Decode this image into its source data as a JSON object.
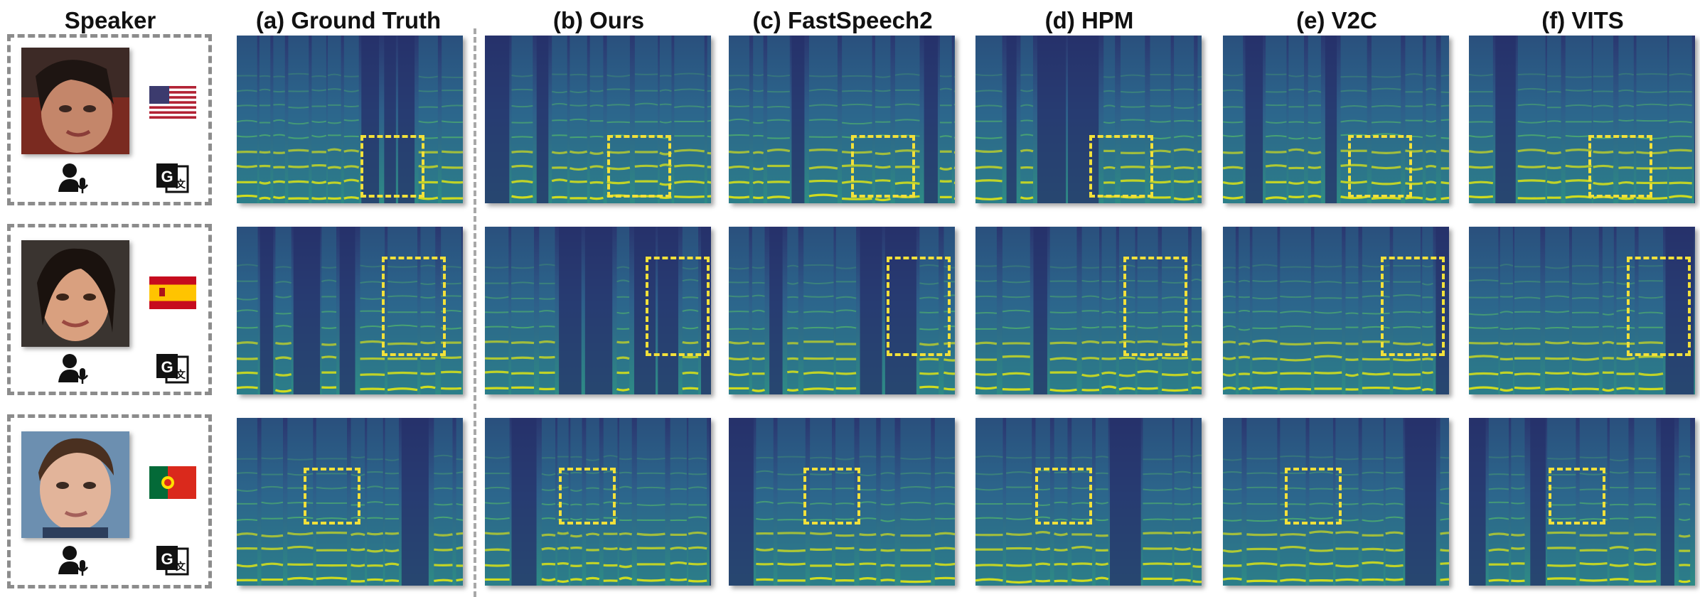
{
  "header": {
    "speaker_label": "Speaker",
    "columns": [
      "(a) Ground Truth",
      "(b) Ours",
      "(c) FastSpeech2",
      "(d) HPM",
      "(e) V2C",
      "(f) VITS"
    ]
  },
  "rows": [
    {
      "flag": "usa",
      "flag_colors": [
        "#b22234",
        "#ffffff",
        "#3c3b6e"
      ],
      "face_tone": "#c4866a",
      "face_bg": "#7a2a20"
    },
    {
      "flag": "spain",
      "flag_colors": [
        "#c60b1e",
        "#ffc400"
      ],
      "face_tone": "#d9a07f",
      "face_bg": "#3a3430"
    },
    {
      "flag": "portugal",
      "flag_colors": [
        "#046a38",
        "#da291c",
        "#ffe000"
      ],
      "face_tone": "#e2b49a",
      "face_bg": "#6c8fb0"
    }
  ],
  "icons": {
    "voice": "speaker-voice-icon",
    "translate": "translate-icon"
  },
  "colors": {
    "spectrogram_low": "#2b3a7a",
    "spectrogram_mid": "#21908c",
    "spectrogram_high": "#d8e219",
    "roi_box": "#f2e03a"
  }
}
